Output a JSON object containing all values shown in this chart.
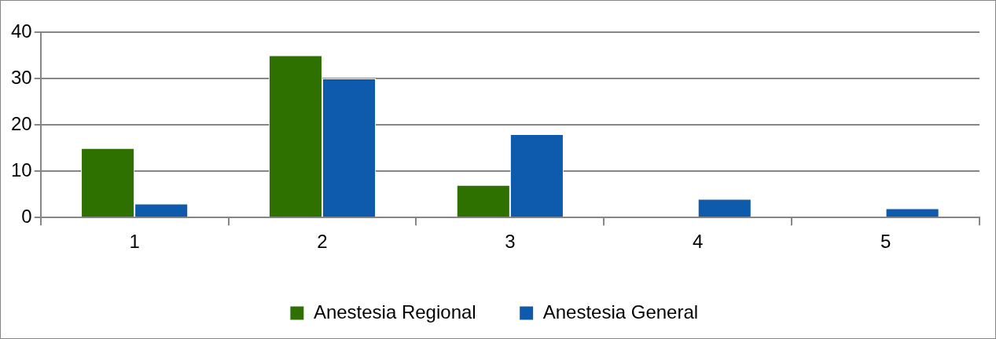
{
  "chart_data": {
    "type": "bar",
    "categories": [
      "1",
      "2",
      "3",
      "4",
      "5"
    ],
    "series": [
      {
        "name": "Anestesia Regional",
        "color": "#2e7100",
        "values": [
          15,
          35,
          7,
          0,
          0
        ]
      },
      {
        "name": "Anestesia General",
        "color": "#0e5bad",
        "values": [
          3,
          30,
          18,
          4,
          2
        ]
      }
    ],
    "ylim": [
      0,
      40
    ],
    "yticks": [
      0,
      10,
      20,
      30,
      40
    ],
    "grid": "y",
    "legend": "bottom"
  }
}
